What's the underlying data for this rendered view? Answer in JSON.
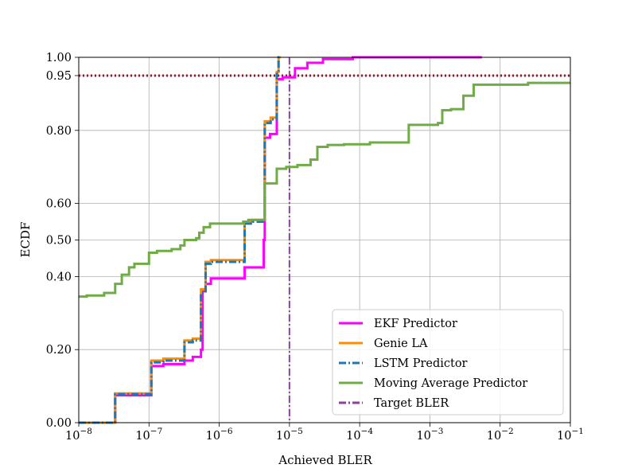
{
  "chart_data": {
    "type": "line",
    "xscale": "log",
    "xlim": [
      1e-08,
      0.1
    ],
    "ylim": [
      0,
      1
    ],
    "xlabel": "Achieved BLER",
    "ylabel": "ECDF",
    "grid": true,
    "legend_position": "lower-right",
    "x_ticks": [
      {
        "base": "10",
        "exp": "−8",
        "value": 1e-08
      },
      {
        "base": "10",
        "exp": "−7",
        "value": 1e-07
      },
      {
        "base": "10",
        "exp": "−6",
        "value": 1e-06
      },
      {
        "base": "10",
        "exp": "−5",
        "value": 1e-05
      },
      {
        "base": "10",
        "exp": "−4",
        "value": 0.0001
      },
      {
        "base": "10",
        "exp": "−3",
        "value": 0.001
      },
      {
        "base": "10",
        "exp": "−2",
        "value": 0.01
      },
      {
        "base": "10",
        "exp": "−1",
        "value": 0.1
      }
    ],
    "y_ticks": [
      {
        "label": "0.00",
        "value": 0.0
      },
      {
        "label": "0.20",
        "value": 0.2
      },
      {
        "label": "0.40",
        "value": 0.4
      },
      {
        "label": "0.50",
        "value": 0.5
      },
      {
        "label": "0.60",
        "value": 0.6
      },
      {
        "label": "0.80",
        "value": 0.8
      },
      {
        "label": "0.95",
        "value": 0.95
      },
      {
        "label": "1.00",
        "value": 1.0
      }
    ],
    "reference_lines": [
      {
        "name": "Target BLER",
        "orientation": "vertical",
        "value": 1e-05,
        "color": "#8e3fa0",
        "style": "dashdot"
      },
      {
        "name": "ECDF 0.95",
        "orientation": "horizontal",
        "value": 0.95,
        "color": "#8b1a2b",
        "style": "dotted"
      }
    ],
    "series": [
      {
        "name": "EKF Predictor",
        "color": "#ff00ff",
        "style": "solid",
        "points": [
          [
            1e-08,
            0.0
          ],
          [
            3.3e-08,
            0.0
          ],
          [
            3.3e-08,
            0.075
          ],
          [
            1.08e-07,
            0.075
          ],
          [
            1.08e-07,
            0.155
          ],
          [
            1.6e-07,
            0.155
          ],
          [
            1.6e-07,
            0.16
          ],
          [
            3.2e-07,
            0.16
          ],
          [
            3.2e-07,
            0.17
          ],
          [
            4.2e-07,
            0.17
          ],
          [
            4.2e-07,
            0.18
          ],
          [
            5.5e-07,
            0.18
          ],
          [
            5.5e-07,
            0.2
          ],
          [
            5.8e-07,
            0.2
          ],
          [
            5.8e-07,
            0.36
          ],
          [
            6.4e-07,
            0.36
          ],
          [
            6.4e-07,
            0.38
          ],
          [
            7.6e-07,
            0.38
          ],
          [
            7.6e-07,
            0.395
          ],
          [
            2.3e-06,
            0.395
          ],
          [
            2.3e-06,
            0.425
          ],
          [
            4.3e-06,
            0.425
          ],
          [
            4.3e-06,
            0.5
          ],
          [
            4.45e-06,
            0.5
          ],
          [
            4.45e-06,
            0.78
          ],
          [
            5.3e-06,
            0.78
          ],
          [
            5.3e-06,
            0.79
          ],
          [
            6.6e-06,
            0.79
          ],
          [
            6.6e-06,
            0.94
          ],
          [
            8e-06,
            0.94
          ],
          [
            8e-06,
            0.945
          ],
          [
            1.2e-05,
            0.945
          ],
          [
            1.2e-05,
            0.97
          ],
          [
            1.8e-05,
            0.97
          ],
          [
            1.8e-05,
            0.985
          ],
          [
            3e-05,
            0.985
          ],
          [
            3e-05,
            0.995
          ],
          [
            8e-05,
            0.995
          ],
          [
            8e-05,
            1.0
          ],
          [
            0.0055,
            1.0
          ]
        ]
      },
      {
        "name": "Genie LA",
        "color": "#ff8c00",
        "style": "solid",
        "points": [
          [
            1e-08,
            0.0
          ],
          [
            3.3e-08,
            0.0
          ],
          [
            3.3e-08,
            0.08
          ],
          [
            1.08e-07,
            0.08
          ],
          [
            1.08e-07,
            0.17
          ],
          [
            1.6e-07,
            0.17
          ],
          [
            1.6e-07,
            0.175
          ],
          [
            3.2e-07,
            0.175
          ],
          [
            3.2e-07,
            0.225
          ],
          [
            4.2e-07,
            0.225
          ],
          [
            4.2e-07,
            0.23
          ],
          [
            5.5e-07,
            0.23
          ],
          [
            5.5e-07,
            0.365
          ],
          [
            6.4e-07,
            0.365
          ],
          [
            6.4e-07,
            0.44
          ],
          [
            7.6e-07,
            0.44
          ],
          [
            7.6e-07,
            0.445
          ],
          [
            2.3e-06,
            0.445
          ],
          [
            2.3e-06,
            0.55
          ],
          [
            3e-06,
            0.55
          ],
          [
            3e-06,
            0.555
          ],
          [
            4.45e-06,
            0.555
          ],
          [
            4.45e-06,
            0.825
          ],
          [
            5.4e-06,
            0.825
          ],
          [
            5.4e-06,
            0.835
          ],
          [
            6.6e-06,
            0.835
          ],
          [
            6.6e-06,
            0.96
          ],
          [
            7e-06,
            0.96
          ],
          [
            7e-06,
            1.0
          ],
          [
            7.5e-06,
            1.0
          ]
        ]
      },
      {
        "name": "LSTM Predictor",
        "color": "#1f77b4",
        "style": "dashdot",
        "points": [
          [
            1e-08,
            0.0
          ],
          [
            3.3e-08,
            0.0
          ],
          [
            3.3e-08,
            0.078
          ],
          [
            1.08e-07,
            0.078
          ],
          [
            1.08e-07,
            0.165
          ],
          [
            1.6e-07,
            0.165
          ],
          [
            1.6e-07,
            0.17
          ],
          [
            3.2e-07,
            0.17
          ],
          [
            3.2e-07,
            0.22
          ],
          [
            4.2e-07,
            0.22
          ],
          [
            4.2e-07,
            0.225
          ],
          [
            5.5e-07,
            0.225
          ],
          [
            5.5e-07,
            0.355
          ],
          [
            6.4e-07,
            0.355
          ],
          [
            6.4e-07,
            0.435
          ],
          [
            7.6e-07,
            0.435
          ],
          [
            7.6e-07,
            0.44
          ],
          [
            2.3e-06,
            0.44
          ],
          [
            2.3e-06,
            0.545
          ],
          [
            3e-06,
            0.545
          ],
          [
            3e-06,
            0.55
          ],
          [
            4.45e-06,
            0.55
          ],
          [
            4.45e-06,
            0.82
          ],
          [
            5.4e-06,
            0.82
          ],
          [
            5.4e-06,
            0.83
          ],
          [
            6.6e-06,
            0.83
          ],
          [
            6.6e-06,
            0.955
          ],
          [
            7e-06,
            0.955
          ],
          [
            7e-06,
            1.0
          ],
          [
            7.5e-06,
            1.0
          ]
        ]
      },
      {
        "name": "Moving Average Predictor",
        "color": "#6fac46",
        "style": "solid",
        "points": [
          [
            1e-08,
            0.345
          ],
          [
            1.3e-08,
            0.345
          ],
          [
            1.3e-08,
            0.348
          ],
          [
            2.3e-08,
            0.348
          ],
          [
            2.3e-08,
            0.355
          ],
          [
            3.3e-08,
            0.355
          ],
          [
            3.3e-08,
            0.38
          ],
          [
            4.1e-08,
            0.38
          ],
          [
            4.1e-08,
            0.405
          ],
          [
            5.2e-08,
            0.405
          ],
          [
            5.2e-08,
            0.425
          ],
          [
            6.2e-08,
            0.425
          ],
          [
            6.2e-08,
            0.435
          ],
          [
            1e-07,
            0.435
          ],
          [
            1e-07,
            0.465
          ],
          [
            1.3e-07,
            0.465
          ],
          [
            1.3e-07,
            0.47
          ],
          [
            2.1e-07,
            0.47
          ],
          [
            2.1e-07,
            0.475
          ],
          [
            2.8e-07,
            0.475
          ],
          [
            2.8e-07,
            0.485
          ],
          [
            3.2e-07,
            0.485
          ],
          [
            3.2e-07,
            0.5
          ],
          [
            4.7e-07,
            0.5
          ],
          [
            4.7e-07,
            0.505
          ],
          [
            5.2e-07,
            0.505
          ],
          [
            5.2e-07,
            0.52
          ],
          [
            6e-07,
            0.52
          ],
          [
            6e-07,
            0.535
          ],
          [
            7.4e-07,
            0.535
          ],
          [
            7.4e-07,
            0.545
          ],
          [
            2.2e-06,
            0.545
          ],
          [
            2.2e-06,
            0.55
          ],
          [
            2.6e-06,
            0.55
          ],
          [
            2.6e-06,
            0.555
          ],
          [
            4.45e-06,
            0.555
          ],
          [
            4.45e-06,
            0.655
          ],
          [
            6.6e-06,
            0.655
          ],
          [
            6.6e-06,
            0.695
          ],
          [
            9e-06,
            0.695
          ],
          [
            9e-06,
            0.7
          ],
          [
            1.3e-05,
            0.7
          ],
          [
            1.3e-05,
            0.705
          ],
          [
            2e-05,
            0.705
          ],
          [
            2e-05,
            0.72
          ],
          [
            2.5e-05,
            0.72
          ],
          [
            2.5e-05,
            0.755
          ],
          [
            3.5e-05,
            0.755
          ],
          [
            3.5e-05,
            0.76
          ],
          [
            6e-05,
            0.76
          ],
          [
            6e-05,
            0.762
          ],
          [
            0.00014,
            0.762
          ],
          [
            0.00014,
            0.767
          ],
          [
            0.0005,
            0.767
          ],
          [
            0.0005,
            0.815
          ],
          [
            0.0013,
            0.815
          ],
          [
            0.0013,
            0.82
          ],
          [
            0.0015,
            0.82
          ],
          [
            0.0015,
            0.855
          ],
          [
            0.002,
            0.855
          ],
          [
            0.002,
            0.858
          ],
          [
            0.003,
            0.858
          ],
          [
            0.003,
            0.895
          ],
          [
            0.0042,
            0.895
          ],
          [
            0.0042,
            0.925
          ],
          [
            0.025,
            0.925
          ],
          [
            0.025,
            0.93
          ],
          [
            0.1,
            0.93
          ]
        ]
      }
    ],
    "legend": [
      {
        "label": "EKF Predictor",
        "color": "#ff00ff",
        "style": "solid"
      },
      {
        "label": "Genie LA",
        "color": "#ff8c00",
        "style": "solid"
      },
      {
        "label": "LSTM Predictor",
        "color": "#1f77b4",
        "style": "dashdot"
      },
      {
        "label": "Moving Average Predictor",
        "color": "#6fac46",
        "style": "solid"
      },
      {
        "label": "Target BLER",
        "color": "#8e3fa0",
        "style": "dashdot"
      }
    ]
  }
}
